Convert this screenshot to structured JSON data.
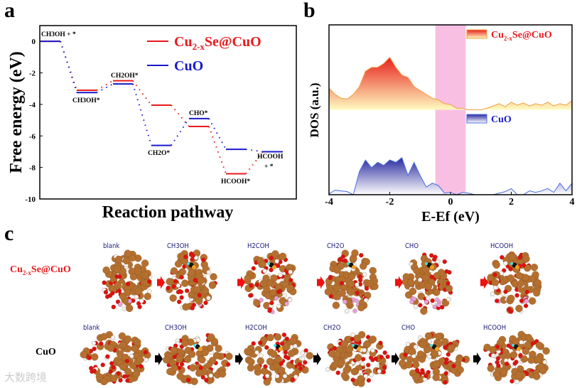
{
  "panels": {
    "a": "a",
    "b": "b",
    "c": "c"
  },
  "colors": {
    "red": "#e8191c",
    "blue": "#1a1acc",
    "pink": "#f9bfe3",
    "cu": "#b5702f",
    "o": "#e01010",
    "h": "#ffffff"
  },
  "chart_data": [
    {
      "type": "line",
      "title": "",
      "xlabel": "Reaction pathway",
      "ylabel": "Free energy (eV)",
      "ylim": [
        -10,
        1
      ],
      "yticks": [
        0,
        -2,
        -4,
        -6,
        -8,
        -10
      ],
      "legend": {
        "placement": "top-right",
        "entries": [
          "Cu2-xSe@CuO",
          "CuO"
        ]
      },
      "steps": [
        "CH3OH + *",
        "CH3OH*",
        "CH2OH*",
        "CH2O*",
        "CHO*",
        "HCOOH*",
        "HCOOH + *"
      ],
      "step_labels": [
        {
          "text": "CH3OH + *",
          "series": "both",
          "step": 0
        },
        {
          "text": "CH3OH*",
          "step": 1
        },
        {
          "text": "CH2OH*",
          "step": 2
        },
        {
          "text": "CH2O*",
          "step": 3
        },
        {
          "text": "CHO*",
          "step": 4
        },
        {
          "text": "HCOOH*",
          "step": 5
        },
        {
          "text": "HCOOH",
          "step": 6
        },
        {
          "text": "+ *",
          "step": 6
        }
      ],
      "series": [
        {
          "name": "Cu2-xSe@CuO",
          "color": "#e8191c",
          "values": [
            0,
            -3.1,
            -2.5,
            -4.05,
            -5.4,
            -8.4,
            -7.0
          ]
        },
        {
          "name": "CuO",
          "color": "#1a1acc",
          "values": [
            0,
            -3.25,
            -2.7,
            -6.6,
            -4.9,
            -6.85,
            -7.0
          ]
        }
      ]
    },
    {
      "type": "area",
      "title": "",
      "xlabel": "E-Ef (eV)",
      "ylabel": "DOS (a.u.)",
      "xlim": [
        -4,
        4
      ],
      "xticks": [
        -4,
        -2,
        0,
        2,
        4
      ],
      "highlight_band": [
        -0.5,
        0.5
      ],
      "legend": {
        "placement": "right",
        "entries": [
          "Cu2-xSe@CuO",
          "CuO"
        ]
      },
      "x_step": 0.2,
      "series": [
        {
          "name": "Cu2-xSe@CuO",
          "offset": 1.1,
          "values": [
            0.28,
            0.2,
            0.15,
            0.14,
            0.2,
            0.3,
            0.5,
            0.55,
            0.55,
            0.6,
            0.68,
            0.55,
            0.45,
            0.42,
            0.3,
            0.25,
            0.2,
            0.15,
            0.13,
            0.08,
            0.07,
            0.02,
            0.02,
            0,
            0,
            0,
            0.02,
            0.05,
            0.08,
            0.04,
            0.1,
            0.06,
            0.09,
            0.05,
            0.08,
            0.06,
            0.1,
            0.05,
            0.08,
            0.06,
            0.12
          ]
        },
        {
          "name": "CuO",
          "offset": 0,
          "values": [
            0.01,
            0.06,
            0.05,
            0.04,
            0,
            0.3,
            0.45,
            0.35,
            0.42,
            0.38,
            0.45,
            0.42,
            0.48,
            0.25,
            0.42,
            0.25,
            0.1,
            0.15,
            0.12,
            0.02,
            0.03,
            0,
            0.03,
            0.02,
            0,
            0,
            0,
            0,
            0.02,
            0.04,
            0.08,
            0,
            0,
            0.05,
            0.03,
            0.05,
            0.08,
            0.03,
            0.15,
            0.05,
            0.15
          ]
        }
      ]
    }
  ],
  "panel_c": {
    "rows": [
      {
        "label": "Cu2-xSe@CuO",
        "steps": [
          "blank",
          "CH3OH",
          "H2COH",
          "CH2O",
          "CHO",
          "HCOOH"
        ]
      },
      {
        "label": "CuO",
        "steps": [
          "blank",
          "CH3OH",
          "H2COH",
          "CH2O",
          "CHO",
          "HCOOH"
        ]
      }
    ]
  },
  "watermark": "大数跨境"
}
